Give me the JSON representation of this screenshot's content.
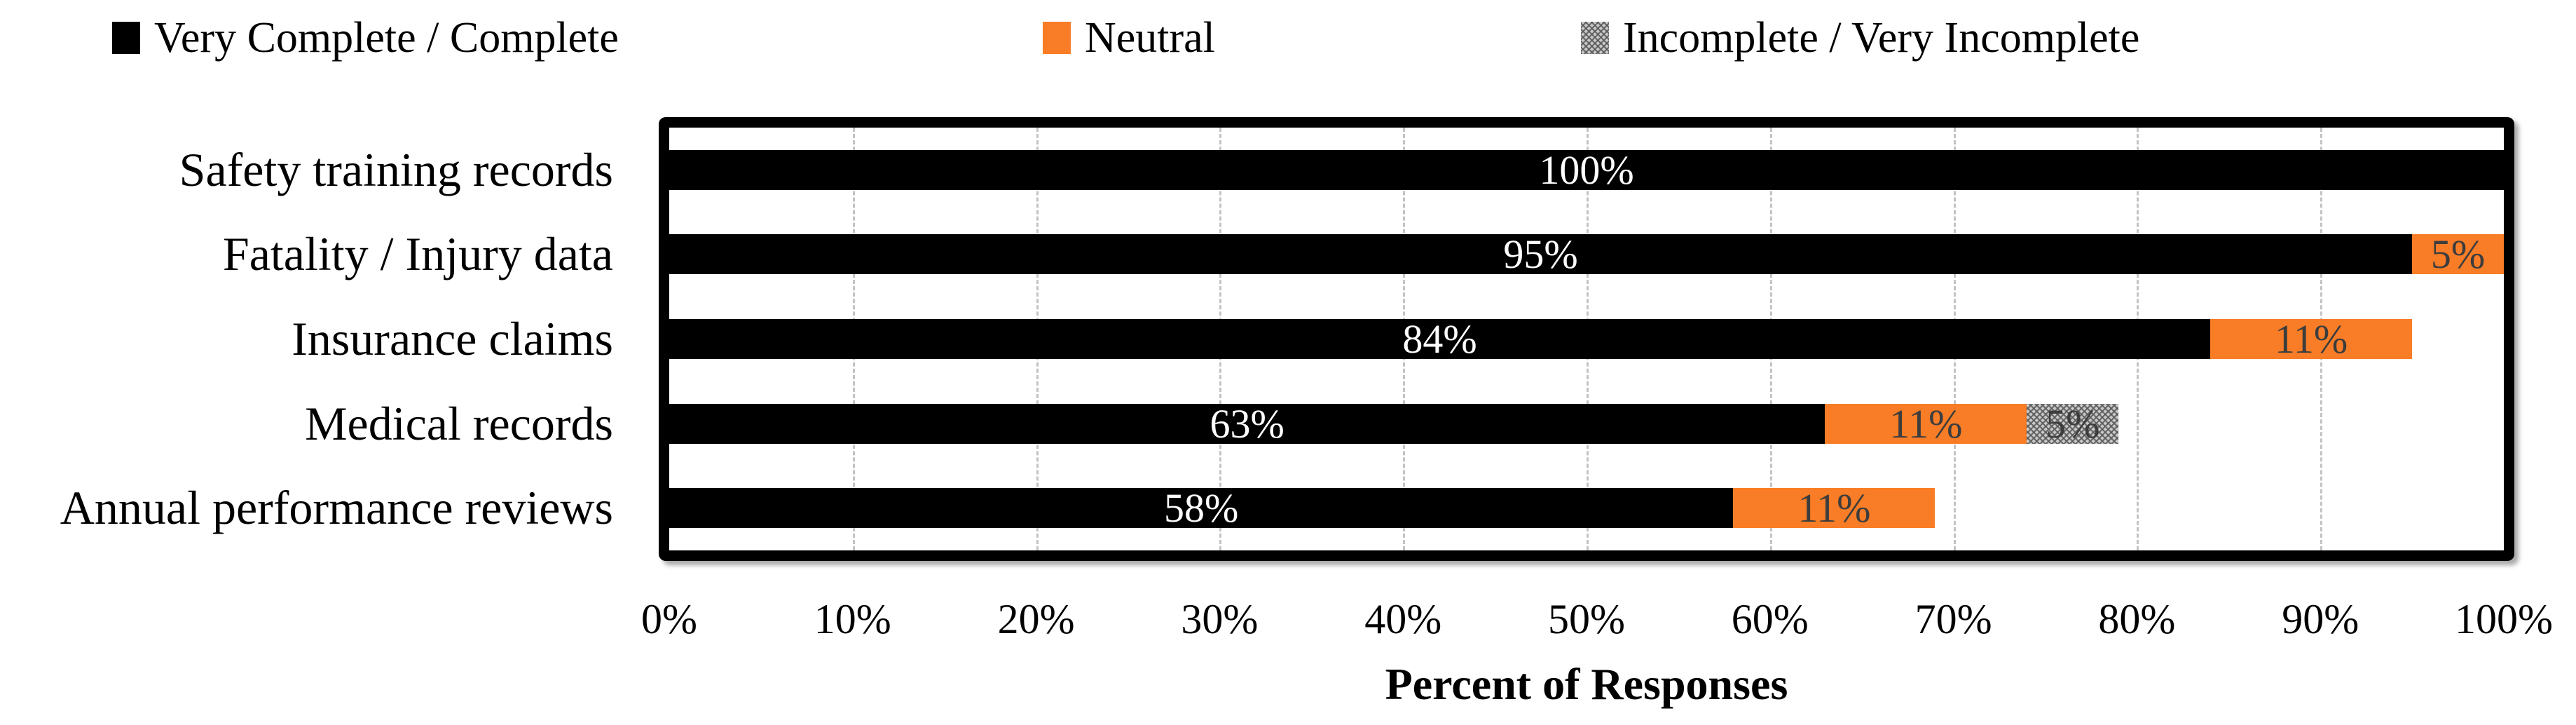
{
  "chart_data": {
    "type": "bar",
    "orientation": "horizontal",
    "stacked": true,
    "categories": [
      "Safety training records",
      "Fatality / Injury data",
      "Insurance claims",
      "Medical records",
      "Annual performance reviews"
    ],
    "series": [
      {
        "name": "Very Complete / Complete",
        "color": "#000000",
        "label_color": "#ffffff",
        "values": [
          100,
          95,
          84,
          63,
          58
        ]
      },
      {
        "name": "Neutral",
        "color": "#F87D26",
        "label_color": "#3d3d3d",
        "values": [
          0,
          5,
          11,
          11,
          11
        ]
      },
      {
        "name": "Incomplete / Very Incomplete",
        "color": "pattern-gray",
        "label_color": "#3d3d3d",
        "values": [
          0,
          0,
          0,
          5,
          0
        ]
      }
    ],
    "data_label_format": "{value}%",
    "xlabel": "Percent of Responses",
    "x_ticks": [
      "0%",
      "10%",
      "20%",
      "30%",
      "40%",
      "50%",
      "60%",
      "70%",
      "80%",
      "90%",
      "100%"
    ],
    "xlim": [
      0,
      100
    ],
    "grid": "vertical-dashed",
    "gridline_color": "#c3c3c3",
    "frame_color": "#000000",
    "legend_position": "top"
  }
}
